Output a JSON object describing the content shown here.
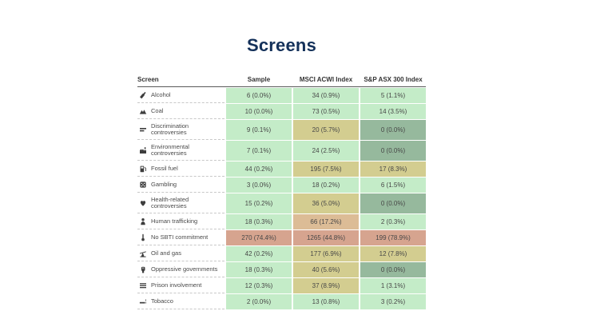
{
  "title": "Screens",
  "colors": {
    "green": "#c4ecc8",
    "tan": "#d3cd90",
    "orange": "#dcbc96",
    "salmon": "#d6a48f",
    "gray": "#96b99d"
  },
  "chart_data": {
    "type": "table",
    "title": "Screens",
    "columns": [
      "Screen",
      "Sample",
      "MSCI ACWI Index",
      "S&P ASX 300 Index"
    ],
    "rows": [
      {
        "label": "Alcohol",
        "icon": "wine-bottle-icon",
        "cells": [
          {
            "text": "6 (0.0%)",
            "color": "green"
          },
          {
            "text": "34 (0.9%)",
            "color": "green"
          },
          {
            "text": "5 (1.1%)",
            "color": "green"
          }
        ]
      },
      {
        "label": "Coal",
        "icon": "coal-mound-icon",
        "cells": [
          {
            "text": "10 (0.0%)",
            "color": "green"
          },
          {
            "text": "73 (0.5%)",
            "color": "green"
          },
          {
            "text": "14 (3.5%)",
            "color": "green"
          }
        ]
      },
      {
        "label": "Discrimination controversies",
        "icon": "unequal-bars-icon",
        "cells": [
          {
            "text": "9 (0.1%)",
            "color": "green"
          },
          {
            "text": "20 (5.7%)",
            "color": "tan"
          },
          {
            "text": "0 (0.0%)",
            "color": "gray"
          }
        ]
      },
      {
        "label": "Environmental controversies",
        "icon": "factory-icon",
        "cells": [
          {
            "text": "7 (0.1%)",
            "color": "green"
          },
          {
            "text": "24 (2.5%)",
            "color": "green"
          },
          {
            "text": "0 (0.0%)",
            "color": "gray"
          }
        ]
      },
      {
        "label": "Fossil fuel",
        "icon": "gas-pump-icon",
        "cells": [
          {
            "text": "44 (0.2%)",
            "color": "green"
          },
          {
            "text": "195 (7.5%)",
            "color": "tan"
          },
          {
            "text": "17 (8.3%)",
            "color": "tan"
          }
        ]
      },
      {
        "label": "Gambling",
        "icon": "dice-icon",
        "cells": [
          {
            "text": "3 (0.0%)",
            "color": "green"
          },
          {
            "text": "18 (0.2%)",
            "color": "green"
          },
          {
            "text": "6 (1.5%)",
            "color": "green"
          }
        ]
      },
      {
        "label": "Health-related controversies",
        "icon": "heart-icon",
        "cells": [
          {
            "text": "15 (0.2%)",
            "color": "green"
          },
          {
            "text": "36 (5.0%)",
            "color": "tan"
          },
          {
            "text": "0 (0.0%)",
            "color": "gray"
          }
        ]
      },
      {
        "label": "Human trafficking",
        "icon": "person-icon",
        "cells": [
          {
            "text": "18 (0.3%)",
            "color": "green"
          },
          {
            "text": "66 (17.2%)",
            "color": "orange"
          },
          {
            "text": "2 (0.3%)",
            "color": "green"
          }
        ]
      },
      {
        "label": "No SBTI commitment",
        "icon": "thermometer-icon",
        "cells": [
          {
            "text": "270 (74.4%)",
            "color": "salmon"
          },
          {
            "text": "1265 (44.8%)",
            "color": "salmon"
          },
          {
            "text": "199 (78.9%)",
            "color": "salmon"
          }
        ]
      },
      {
        "label": "Oil and gas",
        "icon": "oil-pumpjack-icon",
        "cells": [
          {
            "text": "42 (0.2%)",
            "color": "green"
          },
          {
            "text": "177 (6.9%)",
            "color": "tan"
          },
          {
            "text": "12 (7.8%)",
            "color": "tan"
          }
        ]
      },
      {
        "label": "Oppressive governments",
        "icon": "raised-fist-icon",
        "cells": [
          {
            "text": "18 (0.3%)",
            "color": "green"
          },
          {
            "text": "40 (5.6%)",
            "color": "tan"
          },
          {
            "text": "0 (0.0%)",
            "color": "gray"
          }
        ]
      },
      {
        "label": "Prison involvement",
        "icon": "prison-bars-icon",
        "cells": [
          {
            "text": "12 (0.3%)",
            "color": "green"
          },
          {
            "text": "37 (8.9%)",
            "color": "tan"
          },
          {
            "text": "1 (3.1%)",
            "color": "green"
          }
        ]
      },
      {
        "label": "Tobacco",
        "icon": "cigarette-icon",
        "cells": [
          {
            "text": "2 (0.0%)",
            "color": "green"
          },
          {
            "text": "13 (0.8%)",
            "color": "green"
          },
          {
            "text": "3 (0.2%)",
            "color": "green"
          }
        ]
      }
    ]
  }
}
